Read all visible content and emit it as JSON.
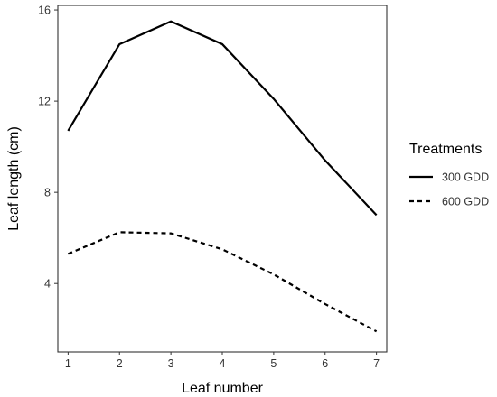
{
  "chart_data": {
    "type": "line",
    "xlabel": "Leaf number",
    "ylabel": "Leaf length (cm)",
    "x": [
      1,
      2,
      3,
      4,
      5,
      6,
      7
    ],
    "xlim": [
      0.8,
      7.2
    ],
    "ylim": [
      1.0,
      16.2
    ],
    "yticks": [
      4,
      8,
      12,
      16
    ],
    "grid": false,
    "legend": {
      "title": "Treatments",
      "placement": "right"
    },
    "series": [
      {
        "name": "300 GDD",
        "dash": "solid",
        "color": "#000000",
        "values": [
          10.7,
          14.5,
          15.5,
          14.5,
          12.1,
          9.4,
          7.0
        ]
      },
      {
        "name": "600 GDD",
        "dash": "dashed",
        "color": "#000000",
        "values": [
          5.3,
          6.25,
          6.2,
          5.5,
          4.4,
          3.1,
          1.9
        ]
      }
    ]
  }
}
